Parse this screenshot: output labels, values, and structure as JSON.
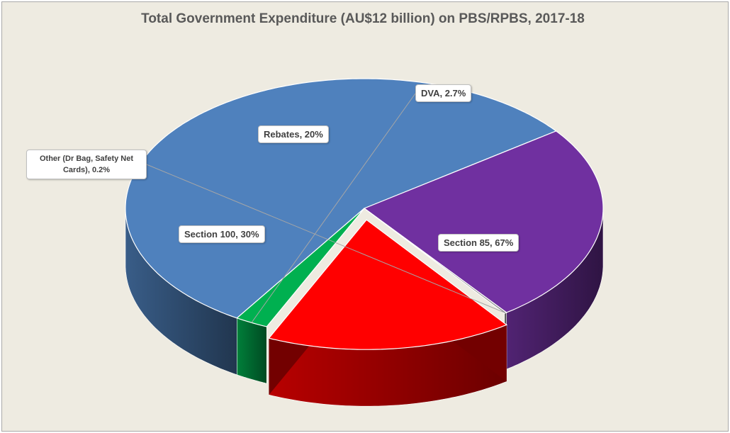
{
  "chart_data": {
    "type": "pie",
    "title": "Total Government Expenditure (AU$12 billion) on PBS/RPBS, 2017-18",
    "slices": [
      {
        "name": "Section 85",
        "label": "Section 85, 67%",
        "value": 67,
        "color": "#4f81bd"
      },
      {
        "name": "Section 100",
        "label": "Section 100, 30%",
        "value": 30,
        "color": "#7030a0"
      },
      {
        "name": "Other (Dr Bag, Safety Net Cards)",
        "label": "Other (Dr Bag, Safety Net Cards), 0.2%",
        "value": 0.2,
        "color": "#8f8f8f"
      },
      {
        "name": "Rebates",
        "label": "Rebates, 20%",
        "value": 20,
        "color": "#ff0000"
      },
      {
        "name": "DVA",
        "label": "DVA, 2.7%",
        "value": 2.7,
        "color": "#00b050"
      }
    ]
  }
}
